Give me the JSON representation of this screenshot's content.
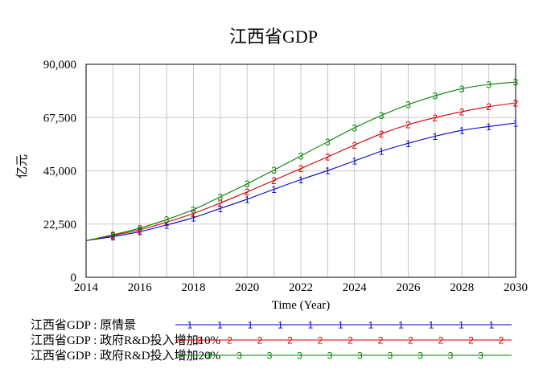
{
  "chart_data": {
    "type": "line",
    "title": "江西省GDP",
    "xlabel": "Time (Year)",
    "ylabel": "亿元",
    "xlim": [
      2014,
      2030
    ],
    "ylim": [
      0,
      90000
    ],
    "x_ticks": [
      "2014",
      "2016",
      "2018",
      "2020",
      "2022",
      "2024",
      "2026",
      "2028",
      "2030"
    ],
    "y_ticks": [
      "90,000",
      "67,500",
      "45,000",
      "22,500",
      "0"
    ],
    "grid": true,
    "legend_position": "bottom",
    "x": [
      2014,
      2015,
      2016,
      2017,
      2018,
      2019,
      2020,
      2021,
      2022,
      2023,
      2024,
      2025,
      2026,
      2027,
      2028,
      2029,
      2030
    ],
    "series": [
      {
        "name": "江西省GDP : 原情景",
        "marker": "1",
        "color": "#0000cc",
        "values": [
          15500,
          17200,
          19300,
          22100,
          25200,
          29100,
          33000,
          37200,
          41300,
          45100,
          49200,
          53300,
          56600,
          59600,
          62100,
          63700,
          65200
        ]
      },
      {
        "name": "江西省GDP : 政府R&D投入增加10%",
        "marker": "2",
        "color": "#d00000",
        "values": [
          15500,
          17700,
          20100,
          23300,
          27000,
          31400,
          36100,
          41000,
          46000,
          50900,
          55900,
          60700,
          64500,
          67500,
          70000,
          72100,
          73700
        ]
      },
      {
        "name": "江西省GDP : 政府R&D投入增加20%",
        "marker": "3",
        "color": "#008000",
        "values": [
          15500,
          18000,
          20800,
          24400,
          28600,
          34000,
          39500,
          45300,
          51300,
          57300,
          63200,
          68400,
          73000,
          76700,
          79700,
          81500,
          82500
        ]
      }
    ]
  }
}
